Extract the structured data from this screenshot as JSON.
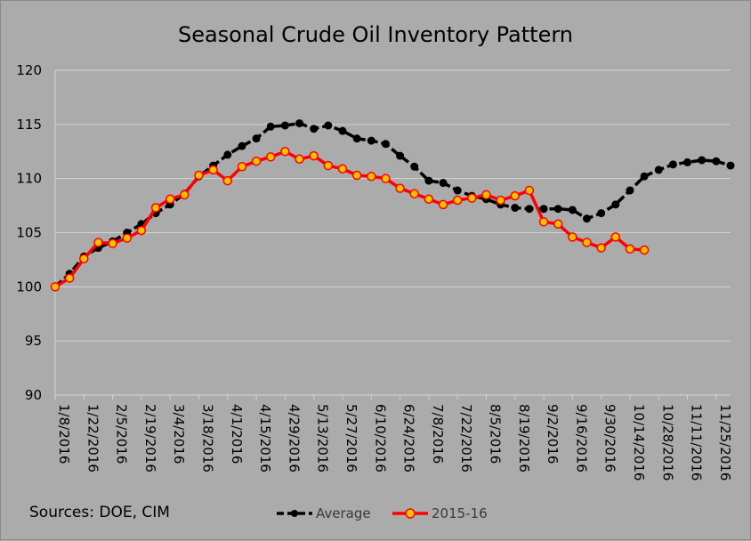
{
  "chart_data": {
    "type": "line",
    "title": "Seasonal Crude Oil Inventory Pattern",
    "xlabel": "",
    "ylabel": "",
    "ylim": [
      90,
      120
    ],
    "yticks": [
      90,
      95,
      100,
      105,
      110,
      115,
      120
    ],
    "grid": true,
    "legend_position": "bottom",
    "x_tick_labels": [
      "1/8/2016",
      "1/22/2016",
      "2/5/2016",
      "2/19/2016",
      "3/4/2016",
      "3/18/2016",
      "4/1/2016",
      "4/15/2016",
      "4/29/2016",
      "5/13/2016",
      "5/27/2016",
      "6/10/2016",
      "6/24/2016",
      "7/8/2016",
      "7/22/2016",
      "8/5/2016",
      "8/19/2016",
      "9/2/2016",
      "9/16/2016",
      "9/30/2016",
      "10/14/2016",
      "10/28/2016",
      "11/11/2016",
      "11/25/2016"
    ],
    "series": [
      {
        "name": "Average",
        "color": "#000000",
        "marker_color": "#000000",
        "values": [
          100.0,
          101.2,
          102.8,
          103.6,
          104.2,
          105.0,
          105.8,
          106.8,
          107.6,
          108.6,
          110.2,
          111.2,
          112.2,
          113.0,
          113.7,
          114.8,
          114.9,
          115.1,
          114.6,
          114.9,
          114.4,
          113.7,
          113.5,
          113.2,
          112.1,
          111.1,
          109.8,
          109.6,
          108.9,
          108.4,
          108.1,
          107.6,
          107.3,
          107.2,
          107.2,
          107.2,
          107.1,
          106.3,
          106.8,
          107.6,
          108.9,
          110.2,
          110.8,
          111.3,
          111.5,
          111.7,
          111.6,
          111.2
        ]
      },
      {
        "name": "2015-16",
        "color": "#ff0000",
        "marker_color": "#ffc000",
        "values": [
          100.0,
          100.8,
          102.6,
          104.1,
          104.0,
          104.5,
          105.2,
          107.3,
          108.1,
          108.5,
          110.3,
          110.8,
          109.8,
          111.1,
          111.6,
          112.0,
          112.5,
          111.8,
          112.1,
          111.2,
          110.9,
          110.3,
          110.2,
          110.0,
          109.1,
          108.6,
          108.1,
          107.6,
          108.0,
          108.2,
          108.5,
          108.0,
          108.4,
          108.9,
          106.0,
          105.8,
          104.6,
          104.1,
          103.6,
          104.6,
          103.5,
          103.4
        ]
      }
    ]
  },
  "sources_text": "Sources:  DOE, CIM"
}
